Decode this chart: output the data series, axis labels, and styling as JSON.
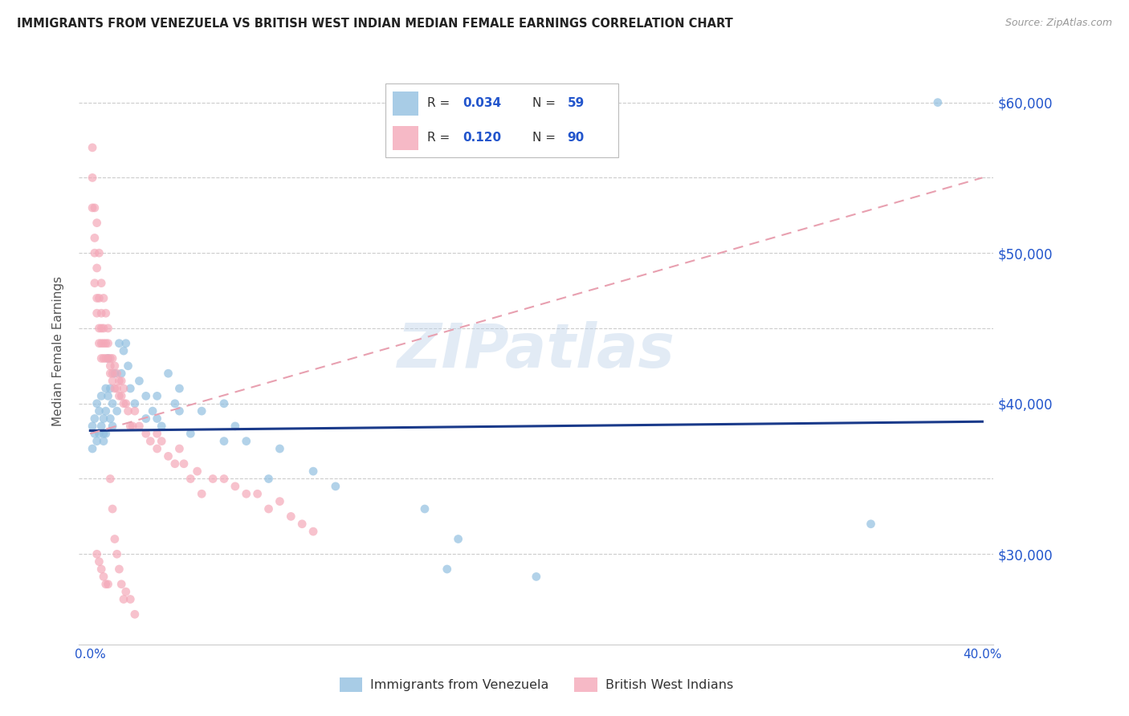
{
  "title": "IMMIGRANTS FROM VENEZUELA VS BRITISH WEST INDIAN MEDIAN FEMALE EARNINGS CORRELATION CHART",
  "source": "Source: ZipAtlas.com",
  "ylabel": "Median Female Earnings",
  "watermark": "ZIPatlas",
  "blue_color": "#92c0e0",
  "pink_color": "#f4a8b8",
  "blue_line_color": "#1a3a8a",
  "pink_line_color": "#e8a0b0",
  "text_color": "#2255cc",
  "legend_label1": "Immigrants from Venezuela",
  "legend_label2": "British West Indians",
  "blue_x": [
    0.001,
    0.001,
    0.002,
    0.002,
    0.003,
    0.003,
    0.004,
    0.004,
    0.005,
    0.005,
    0.006,
    0.006,
    0.006,
    0.007,
    0.007,
    0.007,
    0.008,
    0.008,
    0.009,
    0.009,
    0.01,
    0.01,
    0.011,
    0.012,
    0.013,
    0.014,
    0.015,
    0.016,
    0.017,
    0.018,
    0.02,
    0.022,
    0.025,
    0.025,
    0.028,
    0.03,
    0.03,
    0.032,
    0.035,
    0.038,
    0.04,
    0.04,
    0.045,
    0.05,
    0.06,
    0.06,
    0.065,
    0.07,
    0.08,
    0.085,
    0.1,
    0.11,
    0.15,
    0.16,
    0.165,
    0.2,
    0.35,
    0.38
  ],
  "blue_y": [
    38500,
    37000,
    39000,
    38000,
    40000,
    37500,
    39500,
    38000,
    40500,
    38500,
    38000,
    39000,
    37500,
    41000,
    39500,
    38000,
    43000,
    40500,
    41000,
    39000,
    40000,
    38500,
    42000,
    39500,
    44000,
    42000,
    43500,
    44000,
    42500,
    41000,
    40000,
    41500,
    39000,
    40500,
    39500,
    39000,
    40500,
    38500,
    42000,
    40000,
    39500,
    41000,
    38000,
    39500,
    37500,
    40000,
    38500,
    37500,
    35000,
    37000,
    35500,
    34500,
    33000,
    29000,
    31000,
    28500,
    32000,
    60000
  ],
  "pink_x": [
    0.001,
    0.001,
    0.001,
    0.002,
    0.002,
    0.002,
    0.002,
    0.003,
    0.003,
    0.003,
    0.003,
    0.004,
    0.004,
    0.004,
    0.004,
    0.005,
    0.005,
    0.005,
    0.005,
    0.005,
    0.006,
    0.006,
    0.006,
    0.006,
    0.007,
    0.007,
    0.007,
    0.008,
    0.008,
    0.008,
    0.009,
    0.009,
    0.009,
    0.01,
    0.01,
    0.01,
    0.011,
    0.011,
    0.012,
    0.012,
    0.013,
    0.013,
    0.014,
    0.014,
    0.015,
    0.015,
    0.016,
    0.017,
    0.018,
    0.019,
    0.02,
    0.022,
    0.025,
    0.027,
    0.03,
    0.03,
    0.032,
    0.035,
    0.038,
    0.04,
    0.042,
    0.045,
    0.048,
    0.05,
    0.055,
    0.06,
    0.065,
    0.07,
    0.075,
    0.08,
    0.085,
    0.09,
    0.095,
    0.1,
    0.003,
    0.004,
    0.005,
    0.006,
    0.007,
    0.008,
    0.009,
    0.01,
    0.011,
    0.012,
    0.013,
    0.014,
    0.015,
    0.016,
    0.018,
    0.02
  ],
  "pink_y": [
    57000,
    55000,
    53000,
    53000,
    51000,
    50000,
    48000,
    52000,
    49000,
    47000,
    46000,
    50000,
    47000,
    45000,
    44000,
    48000,
    46000,
    45000,
    44000,
    43000,
    47000,
    45000,
    44000,
    43000,
    46000,
    44000,
    43000,
    45000,
    44000,
    43000,
    43000,
    42500,
    42000,
    43000,
    42000,
    41500,
    42500,
    41000,
    42000,
    41000,
    41500,
    40500,
    41500,
    40500,
    41000,
    40000,
    40000,
    39500,
    38500,
    38500,
    39500,
    38500,
    38000,
    37500,
    38000,
    37000,
    37500,
    36500,
    36000,
    37000,
    36000,
    35000,
    35500,
    34000,
    35000,
    35000,
    34500,
    34000,
    34000,
    33000,
    33500,
    32500,
    32000,
    31500,
    30000,
    29500,
    29000,
    28500,
    28000,
    28000,
    35000,
    33000,
    31000,
    30000,
    29000,
    28000,
    27000,
    27500,
    27000,
    26000
  ],
  "xlim": [
    -0.005,
    0.405
  ],
  "ylim": [
    24000,
    63000
  ],
  "blue_line_x": [
    0.0,
    0.4
  ],
  "blue_line_y": [
    38200,
    38800
  ],
  "pink_line_x": [
    0.0,
    0.4
  ],
  "pink_line_y": [
    38000,
    55000
  ]
}
